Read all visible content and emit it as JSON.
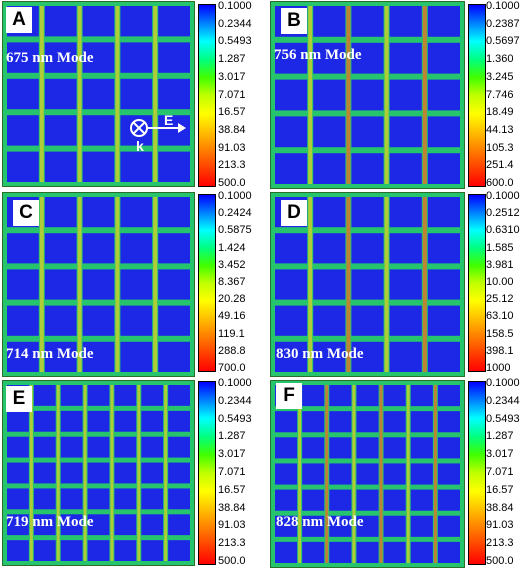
{
  "colormap": [
    "#0000ff",
    "#0080ff",
    "#00ffff",
    "#00ff80",
    "#40ff00",
    "#c0ff00",
    "#ffff00",
    "#ffc000",
    "#ff8000",
    "#ff4000",
    "#ff0000"
  ],
  "cell_fill": "#1c28e6",
  "grid_line": "#27c46e",
  "panels": [
    {
      "letter": "A",
      "mode": "675 nm Mode",
      "grid": 5,
      "ticks": [
        "0.1000",
        "0.2344",
        "0.5493",
        "1.287",
        "3.017",
        "7.071",
        "16.57",
        "38.84",
        "91.03",
        "213.3",
        "500.0"
      ],
      "polarization": {
        "k": "k",
        "E": "E"
      }
    },
    {
      "letter": "B",
      "mode": "756 nm Mode",
      "grid": 5,
      "ticks": [
        "0.1000",
        "0.2387",
        "0.5697",
        "1.360",
        "3.245",
        "7.746",
        "18.49",
        "44.13",
        "105.3",
        "251.4",
        "600.0"
      ]
    },
    {
      "letter": "C",
      "mode": "714 nm Mode",
      "grid": 5,
      "ticks": [
        "0.1000",
        "0.2424",
        "0.5875",
        "1.424",
        "3.452",
        "8.367",
        "20.28",
        "49.16",
        "119.1",
        "288.8",
        "700.0"
      ]
    },
    {
      "letter": "D",
      "mode": "830 nm Mode",
      "grid": 5,
      "ticks": [
        "0.1000",
        "0.2512",
        "0.6310",
        "1.585",
        "3.981",
        "10.00",
        "25.12",
        "63.10",
        "158.5",
        "398.1",
        "1000"
      ]
    },
    {
      "letter": "E",
      "mode": "719 nm Mode",
      "grid": 7,
      "ticks": [
        "0.1000",
        "0.2344",
        "0.5493",
        "1.287",
        "3.017",
        "7.071",
        "16.57",
        "38.84",
        "91.03",
        "213.3",
        "500.0"
      ]
    },
    {
      "letter": "F",
      "mode": "828 nm Mode",
      "grid": 7,
      "ticks": [
        "0.1000",
        "0.2344",
        "0.5493",
        "1.287",
        "3.017",
        "7.071",
        "16.57",
        "38.84",
        "91.03",
        "213.3",
        "500.0"
      ]
    }
  ]
}
